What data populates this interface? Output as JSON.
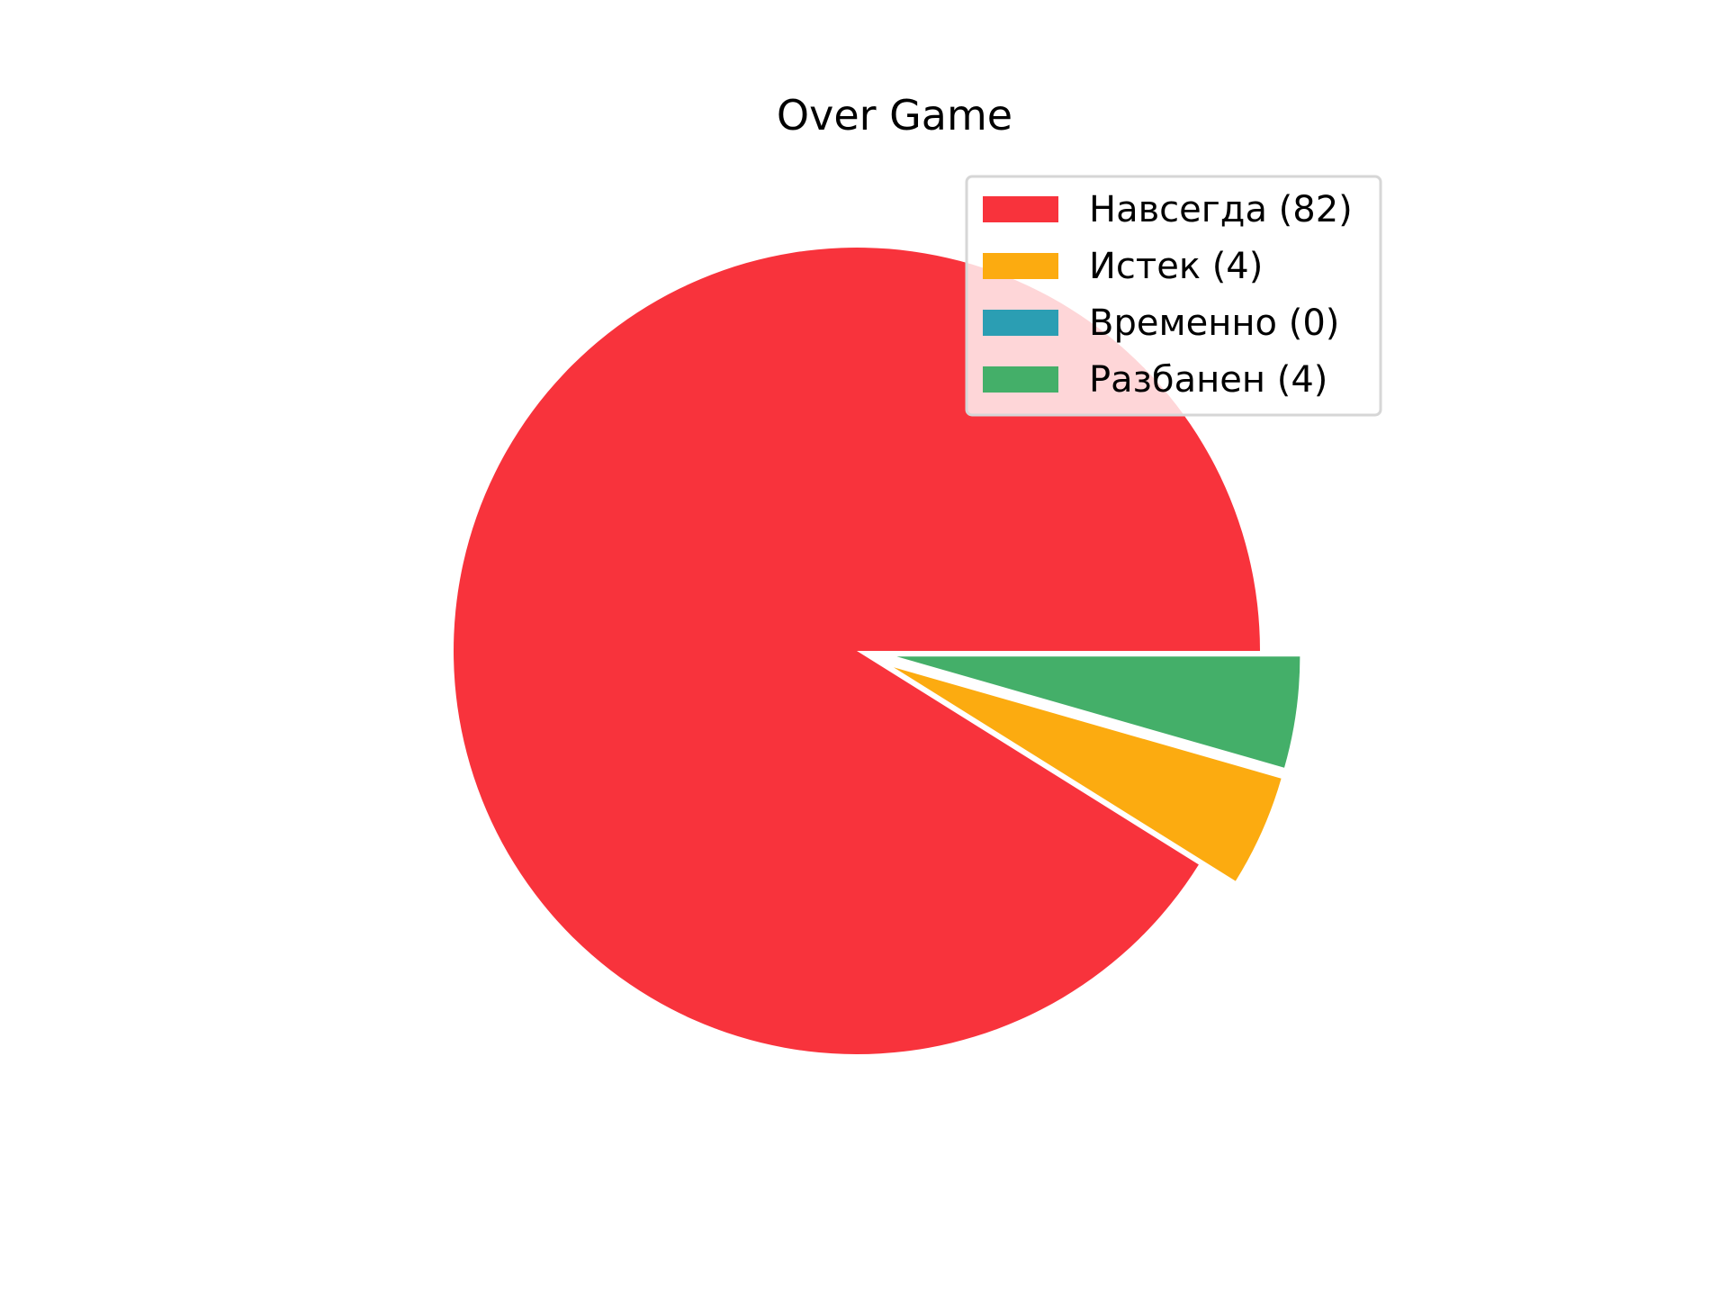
{
  "chart_data": {
    "type": "pie",
    "title": "Over Game",
    "categories": [
      "Навсегда",
      "Истек",
      "Временно",
      "Разбанен"
    ],
    "values": [
      82,
      4,
      0,
      4
    ],
    "colors": [
      "#f8333c",
      "#fcab10",
      "#2b9eb3",
      "#44af69"
    ],
    "explode": [
      0,
      0.1,
      0.1,
      0.1
    ],
    "start_angle_deg": 0,
    "direction": "counterclockwise",
    "legend": {
      "placement": "upper-right",
      "entries": [
        "Навсегда (82)",
        "Истек (4)",
        "Временно (0)",
        "Разбанен (4)"
      ]
    }
  }
}
